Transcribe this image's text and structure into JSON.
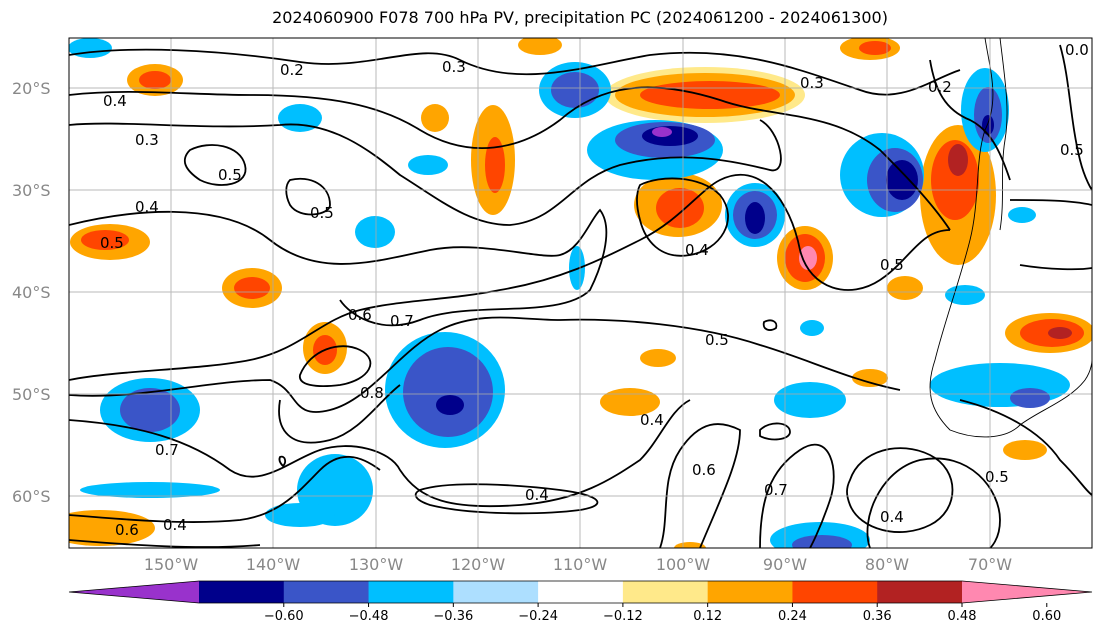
{
  "title": "2024060900 F078 700 hPa PV, precipitation PC (2024061200 - 2024061300)",
  "map": {
    "region": "South-East Pacific and South America",
    "lat_range": [
      -65,
      -15
    ],
    "lon_range": [
      -160,
      -60
    ],
    "lat_labels": [
      "20°S",
      "30°S",
      "40°S",
      "50°S",
      "60°S"
    ],
    "lon_labels": [
      "150°W",
      "140°W",
      "130°W",
      "120°W",
      "110°W",
      "100°W",
      "90°W",
      "80°W",
      "70°W"
    ],
    "contour_labels": [
      "0.2",
      "0.3",
      "0.4",
      "0.3",
      "0.5",
      "0.5",
      "0.4",
      "0.5",
      "0.5",
      "0.6",
      "0.7",
      "0.8",
      "0.5",
      "0.4",
      "0.7",
      "0.6",
      "0.4",
      "0.6",
      "0.7",
      "0.4",
      "0.5",
      "0.3",
      "0.2",
      "0.0",
      "0.4",
      "0.5"
    ]
  },
  "colorbar": {
    "ticks": [
      "−0.60",
      "−0.48",
      "−0.36",
      "−0.24",
      "−0.12",
      "0.12",
      "0.24",
      "0.36",
      "0.48",
      "0.60"
    ],
    "colors": [
      "#9932CC",
      "#00008B",
      "#3A55C8",
      "#00BFFF",
      "#ADDFFF",
      "#FFFFFF",
      "#FFE98A",
      "#FFA500",
      "#FF4500",
      "#B22222",
      "#FF88B0"
    ]
  }
}
